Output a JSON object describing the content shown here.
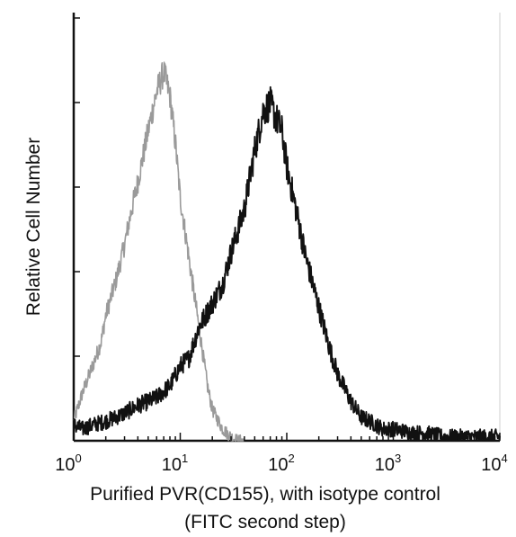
{
  "chart_data": {
    "type": "line",
    "title": "",
    "xlabel": "Purified PVR(CD155), with isotype control",
    "xlabel_line2": "(FITC second step)",
    "ylabel": "Relative Cell Number",
    "x_scale": "log",
    "xlim": [
      1,
      10000
    ],
    "ylim": [
      0,
      100
    ],
    "x_ticks": [
      {
        "base": "10",
        "exp": "0"
      },
      {
        "base": "10",
        "exp": "1"
      },
      {
        "base": "10",
        "exp": "2"
      },
      {
        "base": "10",
        "exp": "3"
      },
      {
        "base": "10",
        "exp": "4"
      }
    ],
    "grid": false,
    "legend": "none",
    "series": [
      {
        "color": "#9a9a9a",
        "x": [
          1.0,
          1.2,
          1.5,
          1.8,
          2.0,
          2.5,
          3.0,
          3.5,
          4.0,
          5.0,
          6.0,
          7.0,
          8.0,
          9.0,
          10.0,
          12.0,
          15.0,
          18.0,
          20.0,
          25.0,
          30.0,
          35.0,
          40.0
        ],
        "values": [
          5,
          12,
          19,
          25,
          32,
          41,
          50,
          59,
          66,
          79,
          89,
          94,
          88,
          76,
          62,
          47,
          29,
          14,
          8,
          3,
          1,
          0,
          0
        ]
      },
      {
        "color": "#111111",
        "x": [
          1.0,
          1.2,
          1.5,
          2.0,
          2.5,
          3.0,
          4.0,
          5.0,
          6.0,
          8.0,
          10.0,
          12.0,
          15.0,
          20.0,
          25.0,
          30.0,
          40.0,
          50.0,
          60.0,
          70.0,
          80.0,
          90.0,
          100.0,
          120.0,
          150.0,
          200.0,
          250.0,
          300.0,
          400.0,
          500.0,
          600.0,
          800.0,
          1000.0,
          1500.0,
          2000.0,
          3000.0,
          5000.0,
          10000.0
        ],
        "values": [
          4,
          3,
          4,
          5,
          6,
          7,
          9,
          10,
          11,
          14,
          19,
          21,
          29,
          35,
          40,
          48,
          59,
          74,
          84,
          86,
          82,
          79,
          70,
          60,
          47,
          34,
          24,
          17,
          10,
          6,
          5,
          3,
          3,
          2,
          2,
          1,
          1,
          1
        ]
      }
    ]
  }
}
